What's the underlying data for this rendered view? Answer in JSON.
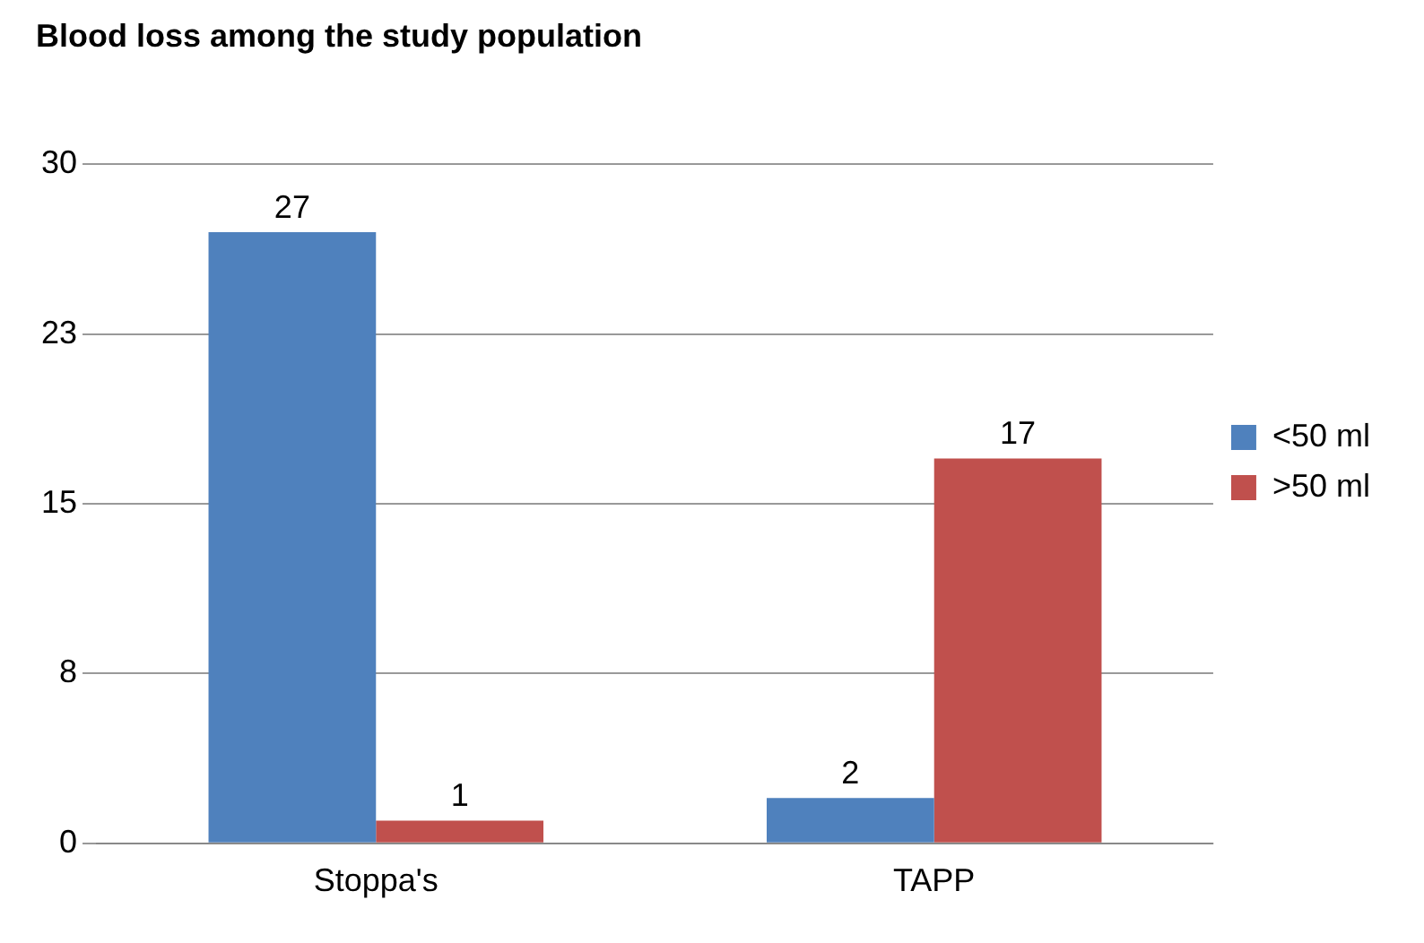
{
  "chart_data": {
    "type": "bar",
    "title": "Blood loss among the study population",
    "categories": [
      "Stoppa's",
      "TAPP"
    ],
    "series": [
      {
        "name": "<50 ml",
        "color": "#4f81bd",
        "values": [
          27,
          2
        ]
      },
      {
        "name": ">50 ml",
        "color": "#c0504d",
        "values": [
          1,
          17
        ]
      }
    ],
    "ylim": [
      0,
      30
    ],
    "yticks": [
      0,
      {
        "value": 7.5,
        "label": "8"
      },
      15,
      {
        "value": 22.5,
        "label": "23"
      },
      30
    ],
    "grid": "y",
    "legend": "right",
    "data_labels": true
  }
}
